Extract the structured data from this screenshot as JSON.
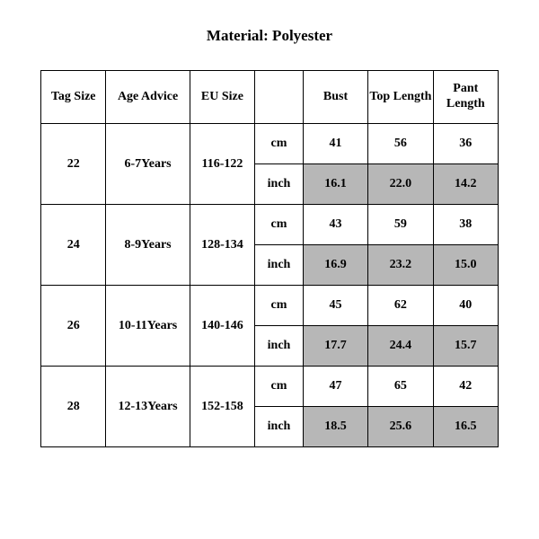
{
  "title": "Material: Polyester",
  "table": {
    "columns": [
      "Tag Size",
      "Age Advice",
      "EU Size",
      "",
      "Bust",
      "Top Length",
      "Pant Length"
    ],
    "unit_labels": {
      "cm": "cm",
      "inch": "inch"
    },
    "rows": [
      {
        "tag_size": "22",
        "age_advice": "6-7Years",
        "eu_size": "116-122",
        "cm": {
          "bust": "41",
          "top_length": "56",
          "pant_length": "36"
        },
        "inch": {
          "bust": "16.1",
          "top_length": "22.0",
          "pant_length": "14.2"
        }
      },
      {
        "tag_size": "24",
        "age_advice": "8-9Years",
        "eu_size": "128-134",
        "cm": {
          "bust": "43",
          "top_length": "59",
          "pant_length": "38"
        },
        "inch": {
          "bust": "16.9",
          "top_length": "23.2",
          "pant_length": "15.0"
        }
      },
      {
        "tag_size": "26",
        "age_advice": "10-11Years",
        "eu_size": "140-146",
        "cm": {
          "bust": "45",
          "top_length": "62",
          "pant_length": "40"
        },
        "inch": {
          "bust": "17.7",
          "top_length": "24.4",
          "pant_length": "15.7"
        }
      },
      {
        "tag_size": "28",
        "age_advice": "12-13Years",
        "eu_size": "152-158",
        "cm": {
          "bust": "47",
          "top_length": "65",
          "pant_length": "42"
        },
        "inch": {
          "bust": "18.5",
          "top_length": "25.6",
          "pant_length": "16.5"
        }
      }
    ],
    "colors": {
      "background": "#ffffff",
      "shaded_cell": "#b7b7b7",
      "border": "#000000",
      "text": "#000000"
    },
    "font": {
      "family": "Times New Roman",
      "header_size_pt": 14,
      "cell_size_pt": 14,
      "title_size_pt": 17,
      "weight": "bold"
    }
  }
}
